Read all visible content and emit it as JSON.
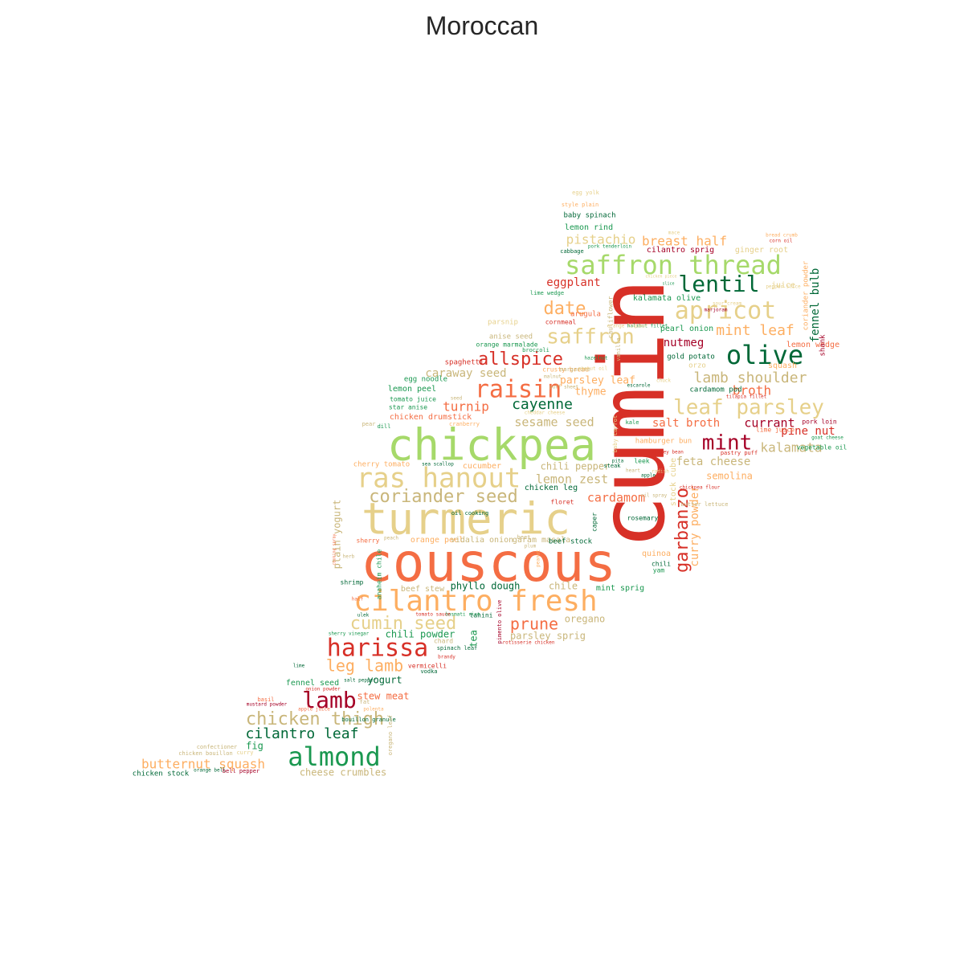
{
  "title": "Moroccan",
  "palette": [
    "#a50026",
    "#d73027",
    "#f46d43",
    "#fdae61",
    "#e6d08a",
    "#c9b67a",
    "#a6d96a",
    "#66bd63",
    "#1a9850",
    "#006837"
  ],
  "words": [
    "cumin",
    "couscous",
    "chickpea",
    "turmeric",
    "ras hanout",
    "saffron thread",
    "cilantro fresh",
    "almond",
    "harissa",
    "apricot",
    "olive",
    "raisin",
    "lentil",
    "lamb",
    "chicken thigh",
    "leaf parsley",
    "mint",
    "saffron",
    "date",
    "coriander seed",
    "garbanzo",
    "allspice",
    "cumin seed",
    "prune",
    "leg lamb",
    "cilantro leaf",
    "lamb shoulder",
    "cayenne",
    "kalamata",
    "mint leaf",
    "butternut squash",
    "turnip",
    "curry powder",
    "broth",
    "pistachio",
    "eggplant",
    "breast half",
    "currant",
    "lemon zest",
    "cardamom",
    "sesame seed",
    "salt broth",
    "feta cheese",
    "nutmeg",
    "fennel bulb",
    "caraway seed",
    "parsley leaf",
    "thyme",
    "pine nut",
    "semolina",
    "plain yogurt",
    "phyllo dough",
    "chile",
    "oregano",
    "parsley sprig",
    "chili pepper",
    "chili powder",
    "yogurt",
    "stew meat",
    "fig",
    "tea",
    "cheese crumbles",
    "beef stew",
    "mint sprig",
    "quinoa",
    "stock cube",
    "lemon wedge",
    "squash",
    "fennel seed",
    "cucumber",
    "lemon peel",
    "chicken drumstick",
    "orange peel",
    "vidalia onion",
    "garam masala",
    "lemon rind",
    "baby spinach",
    "ginger root",
    "style plain",
    "egg yolk",
    "cilantro sprig",
    "pork tenderloin",
    "corn oil",
    "coriander powder",
    "kalamata olive",
    "pearl onion",
    "gold potato",
    "orzo",
    "juice",
    "shank",
    "anise seed",
    "orange marmalade",
    "parsnip",
    "cornmeal",
    "arugula",
    "lime wedge",
    "spaghetti",
    "egg noodle",
    "tomato juice",
    "star anise",
    "crusty bread",
    "cardamom pod",
    "tilapia fillet",
    "hamburger bun",
    "kidney bean",
    "pastry puff",
    "lime juice",
    "pork loin",
    "goat cheese",
    "vegetable oil",
    "cherry tomato",
    "sea scallop",
    "steak",
    "leek",
    "radish",
    "chicken leg",
    "floret",
    "chickpea flour",
    "butter lettuce",
    "rosemary",
    "caper",
    "beef stock",
    "chili",
    "yam",
    "shrimp",
    "anaheim chile",
    "sherry",
    "herb",
    "half",
    "tahini",
    "basmati rice",
    "tomato sauce",
    "ulek",
    "sherry vinegar",
    "chard",
    "spinach leaf",
    "brandy",
    "pimento olive",
    "rotisserie chicken",
    "lime",
    "vermicelli",
    "vodka",
    "salt pepper",
    "onion powder",
    "basil",
    "mustard powder",
    "apple juice",
    "fat",
    "polenta",
    "bouillon granule",
    "oregano leaf",
    "confectioner",
    "chicken bouillon",
    "curry",
    "chicken stock",
    "orange bell",
    "bell pepper",
    "cabbage",
    "mace",
    "chicken piece",
    "halibut fillet",
    "cauliflower",
    "vanilla",
    "orange liqueur",
    "broccoli",
    "malnut",
    "margarine",
    "peanut oil",
    "escarole",
    "chuck",
    "cheddar cheese",
    "kale",
    "baby carrot",
    "cranberry",
    "seed",
    "dill",
    "pear",
    "pita",
    "heart",
    "oil spray",
    "apple",
    "oil cooking",
    "peach",
    "beet",
    "plum",
    "sour cream",
    "marjoram",
    "pepper slice",
    "slice",
    "bread crumb",
    "puff sheet",
    "hazelnut",
    "peanut",
    "cooking spray"
  ]
}
